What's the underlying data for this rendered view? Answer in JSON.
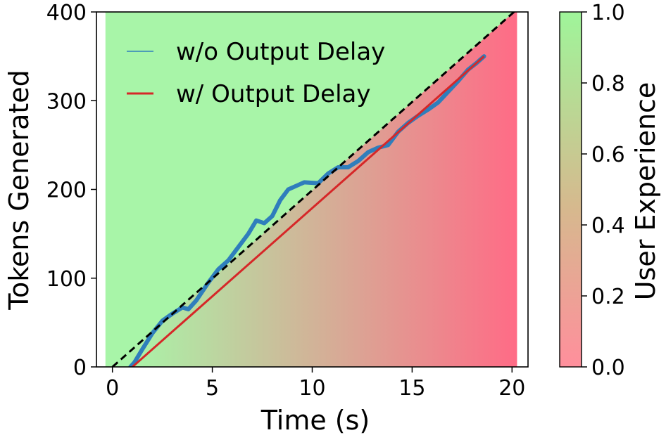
{
  "chart_data": {
    "type": "line",
    "xlabel": "Time (s)",
    "ylabel": "Tokens Generated",
    "xlim": [
      -0.8,
      20.8
    ],
    "ylim": [
      0,
      400
    ],
    "xticks": [
      0,
      5,
      10,
      15,
      20
    ],
    "yticks": [
      0,
      100,
      200,
      300,
      400
    ],
    "grid": false,
    "legend": {
      "placement": "top-left",
      "entries": [
        "w/o Output Delay",
        "w/ Output Delay"
      ]
    },
    "colors": {
      "wo_delay": "#2f7ebc",
      "w_delay": "#d62728",
      "reference": "#000000",
      "ux_high": "#a8f5a8",
      "ux_low": "#ff6b86"
    },
    "series": [
      {
        "name": "w/o Output Delay",
        "x": [
          0.9,
          1.1,
          1.5,
          2.0,
          2.5,
          3.0,
          3.5,
          3.8,
          4.2,
          4.8,
          5.3,
          5.8,
          6.3,
          6.8,
          7.2,
          7.6,
          8.0,
          8.4,
          8.8,
          9.3,
          9.6,
          10.3,
          10.8,
          11.3,
          11.8,
          12.3,
          12.8,
          13.3,
          13.8,
          14.3,
          14.8,
          15.3,
          15.8,
          16.3,
          16.8,
          17.3,
          17.8,
          18.2,
          18.6
        ],
        "y": [
          0,
          5,
          20,
          38,
          52,
          60,
          67,
          65,
          75,
          95,
          110,
          120,
          135,
          150,
          165,
          162,
          170,
          188,
          200,
          205,
          208,
          207,
          218,
          225,
          225,
          232,
          242,
          247,
          250,
          265,
          275,
          283,
          290,
          298,
          310,
          322,
          335,
          342,
          350
        ]
      },
      {
        "name": "w/ Output Delay",
        "x": [
          1.0,
          18.6
        ],
        "y": [
          0,
          350
        ]
      },
      {
        "name": "",
        "style": "dashed",
        "x": [
          0,
          20.3
        ],
        "y": [
          0,
          404
        ]
      }
    ],
    "colorbar": {
      "label": "User Experience",
      "range": [
        0,
        1
      ],
      "ticks": [
        "0.0",
        "0.2",
        "0.4",
        "0.6",
        "0.8",
        "1.0"
      ]
    }
  }
}
